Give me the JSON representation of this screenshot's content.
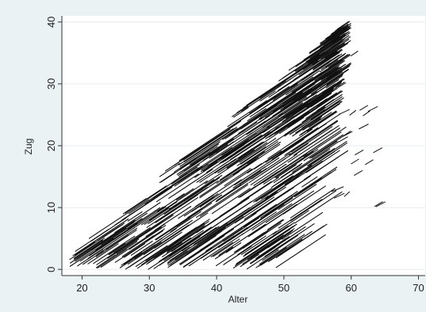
{
  "chart_data": {
    "type": "scatter",
    "title": "",
    "xlabel": "Alter",
    "ylabel": "Zug",
    "xlim": [
      17,
      71
    ],
    "ylim": [
      -1,
      41
    ],
    "x_ticks": [
      "20",
      "30",
      "40",
      "50",
      "60",
      "70"
    ],
    "y_ticks": [
      "0",
      "10",
      "20",
      "30",
      "40"
    ],
    "grid": true,
    "legend": "none",
    "colors": {
      "background": "#eaf2f3",
      "plot_area": "#ffffff",
      "marks": "#111111",
      "grid": "#e6eef0"
    },
    "band_regions": [
      {
        "zug_from": 0,
        "zug_to": 3,
        "alter_from": 18,
        "alter_to": 55
      },
      {
        "zug_from": 3,
        "zug_to": 12,
        "alter_from": 20,
        "alter_to": 57
      },
      {
        "zug_from": 13,
        "zug_to": 19,
        "alter_from": 31,
        "alter_to": 58
      },
      {
        "zug_from": 21,
        "zug_to": 28,
        "alter_from": 40,
        "alter_to": 57
      },
      {
        "zug_from": 28,
        "zug_to": 39,
        "alter_from": 48,
        "alter_to": 58
      }
    ],
    "envelope": [
      [
        18,
        3
      ],
      [
        58,
        39
      ]
    ]
  }
}
